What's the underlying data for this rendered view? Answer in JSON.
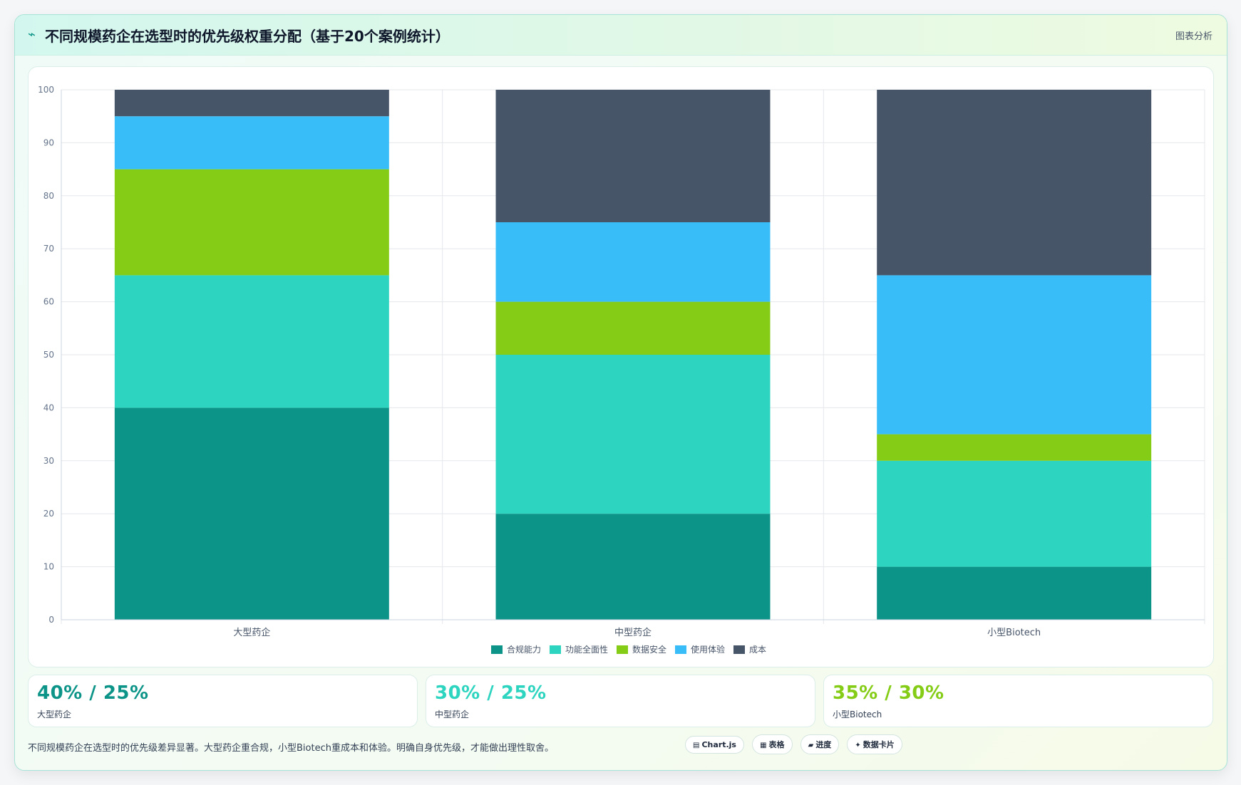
{
  "header": {
    "title": "不同规模药企在选型时的优先级权重分配（基于20个案例统计）",
    "subtitle": "图表分析",
    "icon": "pulse-icon"
  },
  "chart_data": {
    "type": "bar",
    "stacked": true,
    "categories": [
      "大型药企",
      "中型药企",
      "小型Biotech"
    ],
    "series": [
      {
        "name": "合规能力",
        "color": "#0d9488",
        "values": [
          40,
          20,
          10
        ]
      },
      {
        "name": "功能全面性",
        "color": "#2dd4bf",
        "values": [
          25,
          30,
          20
        ]
      },
      {
        "name": "数据安全",
        "color": "#84cc16",
        "values": [
          20,
          10,
          5
        ]
      },
      {
        "name": "使用体验",
        "color": "#38bdf8",
        "values": [
          10,
          15,
          30
        ]
      },
      {
        "name": "成本",
        "color": "#475569",
        "values": [
          5,
          25,
          35
        ]
      }
    ],
    "ylim": [
      0,
      100
    ],
    "yticks": [
      "0",
      "10",
      "20",
      "30",
      "40",
      "50",
      "60",
      "70",
      "80",
      "90",
      "100"
    ],
    "grid": true,
    "legend_position": "bottom"
  },
  "stats": [
    {
      "value": "40% / 25%",
      "label": "大型药企",
      "color": "#0d9488"
    },
    {
      "value": "30% / 25%",
      "label": "中型药企",
      "color": "#2dd4bf"
    },
    {
      "value": "35% / 30%",
      "label": "小型Biotech",
      "color": "#84cc16"
    }
  ],
  "footer": {
    "text": "不同规模药企在选型时的优先级差异显著。大型药企重合规，小型Biotech重成本和体验。明确自身优先级，才能做出理性取舍。",
    "chips": [
      {
        "icon": "▤",
        "label": "Chart.js"
      },
      {
        "icon": "▦",
        "label": "表格"
      },
      {
        "icon": "▰",
        "label": "进度"
      },
      {
        "icon": "✦",
        "label": "数据卡片"
      }
    ]
  }
}
